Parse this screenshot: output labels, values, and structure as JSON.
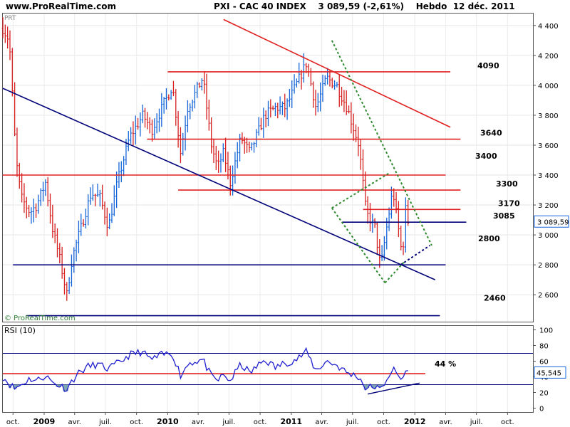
{
  "header": {
    "site": "www.ProRealTime.com",
    "title": "PXI - CAC 40 INDEX    3 089,59 (-2,61%)    Hebdo  12 déc. 2011"
  },
  "watermark": "© ProRealTime.com",
  "corner_tag": "PRT",
  "colors": {
    "up_bar": "#1565d8",
    "down_bar": "#d62020",
    "resistance": "#e02020",
    "support": "#00007a",
    "channel": "#2e8b2e",
    "rsi_line": "#2020d0",
    "price_box_border": "#1565d8"
  },
  "chart_data": [
    {
      "type": "ohlc",
      "period": "weekly",
      "x_range": [
        "2008-09-01",
        "2012-12-15"
      ],
      "ylim": [
        2420,
        4480
      ],
      "yticks": [
        2600,
        2800,
        3000,
        3200,
        3400,
        3600,
        3800,
        4000,
        4200,
        4400
      ],
      "ytick_labels": [
        "2 600",
        "2 800",
        "3 000",
        "3 200",
        "3 400",
        "3 600",
        "3 800",
        "4 000",
        "4 200",
        "4 400"
      ],
      "xtick_labels": [
        "oct.",
        "2009",
        "avr.",
        "juil.",
        "oct.",
        "2010",
        "avr.",
        "juil.",
        "oct.",
        "2011",
        "avr.",
        "juil.",
        "oct.",
        "2012",
        "avr.",
        "juil.",
        "oct."
      ],
      "xtick_dates": [
        "2008-10-01",
        "2009-01-01",
        "2009-04-01",
        "2009-07-01",
        "2009-10-01",
        "2010-01-01",
        "2010-04-01",
        "2010-07-01",
        "2010-10-01",
        "2011-01-01",
        "2011-04-01",
        "2011-07-01",
        "2011-10-01",
        "2012-01-01",
        "2012-04-01",
        "2012-07-01",
        "2012-10-01"
      ],
      "last_price_label": "3 089,59",
      "last_price": 3089.59,
      "price_path": [
        [
          "2008-09-01",
          4380
        ],
        [
          "2008-09-20",
          4300
        ],
        [
          "2008-10-10",
          3500
        ],
        [
          "2008-10-25",
          3250
        ],
        [
          "2008-11-20",
          3150
        ],
        [
          "2008-12-10",
          3200
        ],
        [
          "2009-01-05",
          3350
        ],
        [
          "2009-01-25",
          3050
        ],
        [
          "2009-02-15",
          2850
        ],
        [
          "2009-03-09",
          2600
        ],
        [
          "2009-03-25",
          2850
        ],
        [
          "2009-04-20",
          3050
        ],
        [
          "2009-05-20",
          3280
        ],
        [
          "2009-06-15",
          3250
        ],
        [
          "2009-07-10",
          3050
        ],
        [
          "2009-08-05",
          3350
        ],
        [
          "2009-09-10",
          3650
        ],
        [
          "2009-10-20",
          3800
        ],
        [
          "2009-11-15",
          3700
        ],
        [
          "2009-12-15",
          3850
        ],
        [
          "2010-01-15",
          4000
        ],
        [
          "2010-02-08",
          3550
        ],
        [
          "2010-03-01",
          3850
        ],
        [
          "2010-04-15",
          4050
        ],
        [
          "2010-05-10",
          3600
        ],
        [
          "2010-05-28",
          3450
        ],
        [
          "2010-06-15",
          3550
        ],
        [
          "2010-07-05",
          3350
        ],
        [
          "2010-08-05",
          3650
        ],
        [
          "2010-09-01",
          3550
        ],
        [
          "2010-10-15",
          3800
        ],
        [
          "2010-11-15",
          3850
        ],
        [
          "2010-12-15",
          3850
        ],
        [
          "2011-01-15",
          4000
        ],
        [
          "2011-02-15",
          4150
        ],
        [
          "2011-03-15",
          3850
        ],
        [
          "2011-04-15",
          4050
        ],
        [
          "2011-05-15",
          4000
        ],
        [
          "2011-06-15",
          3850
        ],
        [
          "2011-07-20",
          3600
        ],
        [
          "2011-08-10",
          3150
        ],
        [
          "2011-09-05",
          3050
        ],
        [
          "2011-09-22",
          2780
        ],
        [
          "2011-10-10",
          3050
        ],
        [
          "2011-10-28",
          3300
        ],
        [
          "2011-11-10",
          3100
        ],
        [
          "2011-11-25",
          2850
        ],
        [
          "2011-12-05",
          3170
        ],
        [
          "2011-12-12",
          3090
        ]
      ],
      "annotations": [
        {
          "text": "4090",
          "y": 4090
        },
        {
          "text": "3640",
          "y": 3640
        },
        {
          "text": "3400",
          "y": 3400
        },
        {
          "text": "3300",
          "y": 3300
        },
        {
          "text": "3170",
          "y": 3170
        },
        {
          "text": "3085",
          "y": 3085
        },
        {
          "text": "2800",
          "y": 2800
        },
        {
          "text": "2460",
          "y": 2460
        }
      ],
      "horizontal_lines": [
        {
          "name": "resistance-4090",
          "y": 4090,
          "from": "2010-01-01",
          "to": "2012-04-15",
          "color": "resistance"
        },
        {
          "name": "resistance-3640",
          "y": 3640,
          "from": "2009-11-01",
          "to": "2012-05-15",
          "color": "resistance"
        },
        {
          "name": "resistance-3400",
          "y": 3400,
          "from": "2008-09-01",
          "to": "2012-04-01",
          "color": "resistance"
        },
        {
          "name": "resistance-3300",
          "y": 3300,
          "from": "2010-02-01",
          "to": "2012-05-15",
          "color": "resistance"
        },
        {
          "name": "resistance-3170",
          "y": 3170,
          "from": "2011-08-01",
          "to": "2012-05-15",
          "color": "resistance"
        },
        {
          "name": "support-3085",
          "y": 3085,
          "from": "2011-06-01",
          "to": "2012-06-01",
          "color": "support"
        },
        {
          "name": "support-2800",
          "y": 2800,
          "from": "2008-10-01",
          "to": "2012-04-01",
          "color": "support"
        },
        {
          "name": "support-2460",
          "y": 2460,
          "from": "2008-11-10",
          "to": "2012-03-15",
          "color": "support"
        }
      ],
      "trend_lines": [
        {
          "name": "red-downtrend",
          "from": [
            "2010-06-15",
            4440
          ],
          "to": [
            "2012-04-15",
            3720
          ],
          "color": "resistance",
          "dash": false
        },
        {
          "name": "blue-downtrend",
          "from": [
            "2008-09-01",
            3980
          ],
          "to": [
            "2012-03-01",
            2700
          ],
          "color": "support",
          "dash": false
        },
        {
          "name": "green-channel-top",
          "from": [
            "2011-05-01",
            4300
          ],
          "to": [
            "2012-02-20",
            2930
          ],
          "color": "channel",
          "dash": true
        },
        {
          "name": "green-channel-bottom",
          "from": [
            "2011-05-01",
            3180
          ],
          "to": [
            "2011-10-05",
            2680
          ],
          "color": "channel",
          "dash": true
        },
        {
          "name": "green-inner-top",
          "from": [
            "2011-05-01",
            3180
          ],
          "to": [
            "2011-10-15",
            3410
          ],
          "color": "channel",
          "dash": true
        },
        {
          "name": "green-inner-bottom",
          "from": [
            "2011-10-05",
            2680
          ],
          "to": [
            "2011-12-01",
            2820
          ],
          "color": "channel",
          "dash": true
        },
        {
          "name": "blue-dotted",
          "from": [
            "2011-11-20",
            2800
          ],
          "to": [
            "2012-02-15",
            2930
          ],
          "color": "support",
          "dash": true
        }
      ]
    },
    {
      "type": "line",
      "indicator": "RSI",
      "label": "RSI (10)",
      "ylim": [
        -5,
        105
      ],
      "yticks": [
        0,
        20,
        40,
        60,
        80,
        100
      ],
      "ytick_labels": [
        "0",
        "20",
        "40",
        "60",
        "80",
        "100"
      ],
      "last_value_label": "45,545",
      "last_value": 45.545,
      "annotation": "44 %",
      "horizontal_lines": [
        {
          "name": "rsi-70",
          "y": 70,
          "color": "support"
        },
        {
          "name": "rsi-44",
          "y": 44,
          "color": "resistance",
          "from": "2008-09-01",
          "to": "2012-02-01"
        },
        {
          "name": "rsi-30",
          "y": 30,
          "color": "support"
        }
      ],
      "trend_line": {
        "from": [
          "2011-08-15",
          18
        ],
        "to": [
          "2012-01-15",
          32
        ]
      },
      "path": [
        [
          "2008-09-01",
          40
        ],
        [
          "2008-10-05",
          25
        ],
        [
          "2008-10-25",
          30
        ],
        [
          "2008-11-20",
          38
        ],
        [
          "2008-12-10",
          35
        ],
        [
          "2009-01-05",
          42
        ],
        [
          "2009-01-25",
          33
        ],
        [
          "2009-02-20",
          28
        ],
        [
          "2009-03-09",
          25
        ],
        [
          "2009-04-05",
          42
        ],
        [
          "2009-05-05",
          52
        ],
        [
          "2009-06-05",
          56
        ],
        [
          "2009-07-10",
          50
        ],
        [
          "2009-08-10",
          58
        ],
        [
          "2009-09-10",
          68
        ],
        [
          "2009-10-15",
          72
        ],
        [
          "2009-11-15",
          62
        ],
        [
          "2009-12-15",
          68
        ],
        [
          "2010-01-15",
          70
        ],
        [
          "2010-02-08",
          42
        ],
        [
          "2010-03-05",
          58
        ],
        [
          "2010-04-15",
          62
        ],
        [
          "2010-05-10",
          40
        ],
        [
          "2010-05-28",
          35
        ],
        [
          "2010-06-15",
          42
        ],
        [
          "2010-07-05",
          35
        ],
        [
          "2010-08-05",
          56
        ],
        [
          "2010-09-01",
          45
        ],
        [
          "2010-10-15",
          62
        ],
        [
          "2010-11-15",
          52
        ],
        [
          "2010-12-15",
          58
        ],
        [
          "2011-01-15",
          62
        ],
        [
          "2011-02-15",
          72
        ],
        [
          "2011-03-15",
          48
        ],
        [
          "2011-04-15",
          60
        ],
        [
          "2011-05-15",
          55
        ],
        [
          "2011-06-15",
          45
        ],
        [
          "2011-07-20",
          40
        ],
        [
          "2011-08-10",
          25
        ],
        [
          "2011-09-05",
          28
        ],
        [
          "2011-09-22",
          22
        ],
        [
          "2011-10-10",
          38
        ],
        [
          "2011-10-28",
          50
        ],
        [
          "2011-11-10",
          42
        ],
        [
          "2011-11-25",
          36
        ],
        [
          "2011-12-05",
          48
        ],
        [
          "2011-12-12",
          45.5
        ]
      ]
    }
  ]
}
